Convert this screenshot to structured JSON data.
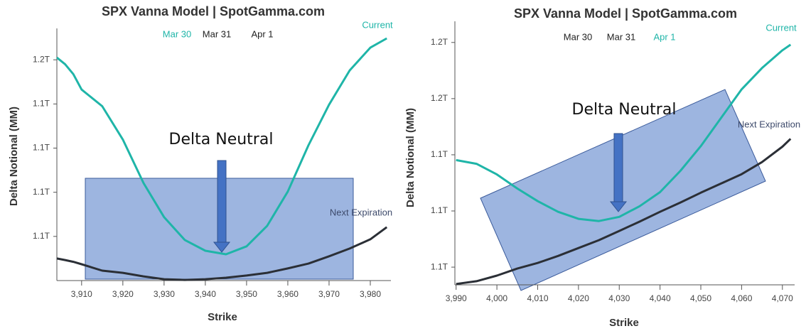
{
  "chart_data": [
    {
      "type": "line",
      "title": "SPX Vanna Model | SpotGamma.com",
      "legend": [
        {
          "label": "Mar 30",
          "color": "#1fb5a8"
        },
        {
          "label": "Mar 31",
          "color": "#222222"
        },
        {
          "label": "Apr 1",
          "color": "#222222"
        }
      ],
      "x_label": "Strike",
      "y_label": "Delta Notional (MM)",
      "annotations": [
        "Delta Neutral"
      ],
      "x": [
        3904,
        3906,
        3908,
        3910,
        3915,
        3920,
        3925,
        3930,
        3935,
        3940,
        3945,
        3950,
        3955,
        3960,
        3965,
        3970,
        3975,
        3980,
        3984
      ],
      "series": [
        {
          "name": "Current",
          "color": "#1fb5a8",
          "values": [
            1.161,
            1.158,
            1.1535,
            1.1465,
            1.139,
            1.1239,
            1.1042,
            1.0887,
            1.0784,
            1.0735,
            1.0719,
            1.0755,
            1.0848,
            1.1003,
            1.1213,
            1.1397,
            1.1552,
            1.1655,
            1.1697
          ]
        },
        {
          "name": "Next Expiration",
          "color": "#2b2f36",
          "values": [
            1.07,
            1.0693,
            1.0685,
            1.0674,
            1.0645,
            1.0635,
            1.0619,
            1.0606,
            1.0603,
            1.0606,
            1.0613,
            1.0623,
            1.0635,
            1.0655,
            1.0677,
            1.071,
            1.0745,
            1.0787,
            1.0842
          ]
        }
      ],
      "xlim": [
        3904,
        3985
      ],
      "xticks": [
        {
          "value": 3910,
          "label": "3,910"
        },
        {
          "value": 3920,
          "label": "3,920"
        },
        {
          "value": 3930,
          "label": "3,930"
        },
        {
          "value": 3940,
          "label": "3,940"
        },
        {
          "value": 3950,
          "label": "3,950"
        },
        {
          "value": 3960,
          "label": "3,960"
        },
        {
          "value": 3970,
          "label": "3,970"
        },
        {
          "value": 3980,
          "label": "3,980"
        }
      ],
      "ylim": [
        1.06,
        1.171
      ],
      "yticks": [
        {
          "value": 1.16,
          "label": "1.2T"
        },
        {
          "value": 1.14,
          "label": "1.1T"
        },
        {
          "value": 1.12,
          "label": "1.1T"
        },
        {
          "value": 1.1,
          "label": "1.1T"
        },
        {
          "value": 1.08,
          "label": "1.1T"
        }
      ],
      "grid": false
    },
    {
      "type": "line",
      "title": "SPX Vanna Model | SpotGamma.com",
      "legend": [
        {
          "label": "Mar 30",
          "color": "#222222"
        },
        {
          "label": "Mar 31",
          "color": "#222222"
        },
        {
          "label": "Apr 1",
          "color": "#1fb5a8"
        }
      ],
      "x_label": "Strike",
      "y_label": "Delta Notional (MM)",
      "annotations": [
        "Delta Neutral"
      ],
      "x": [
        3990,
        3995,
        4000,
        4005,
        4010,
        4015,
        4020,
        4025,
        4030,
        4035,
        4040,
        4045,
        4050,
        4055,
        4060,
        4065,
        4070,
        4072
      ],
      "series": [
        {
          "name": "Current",
          "color": "#1fb5a8",
          "values": [
            1.1381,
            1.1368,
            1.133,
            1.128,
            1.1235,
            1.1197,
            1.1172,
            1.1164,
            1.1179,
            1.1217,
            1.1267,
            1.1343,
            1.1431,
            1.1532,
            1.1633,
            1.1709,
            1.1772,
            1.1792
          ]
        },
        {
          "name": "Next Expiration",
          "color": "#2b2f36",
          "values": [
            1.094,
            1.095,
            1.097,
            1.0995,
            1.1015,
            1.104,
            1.1068,
            1.1096,
            1.1129,
            1.1162,
            1.1197,
            1.123,
            1.1265,
            1.1298,
            1.1331,
            1.1374,
            1.1429,
            1.1457
          ]
        }
      ],
      "xlim": [
        3989.7,
        4073
      ],
      "xticks": [
        {
          "value": 3990,
          "label": "3,990"
        },
        {
          "value": 4000,
          "label": "4,000"
        },
        {
          "value": 4010,
          "label": "4,010"
        },
        {
          "value": 4020,
          "label": "4,020"
        },
        {
          "value": 4030,
          "label": "4,030"
        },
        {
          "value": 4040,
          "label": "4,040"
        },
        {
          "value": 4050,
          "label": "4,050"
        },
        {
          "value": 4060,
          "label": "4,060"
        },
        {
          "value": 4070,
          "label": "4,070"
        }
      ],
      "ylim": [
        1.0937,
        1.185
      ],
      "yticks": [
        {
          "value": 1.18,
          "label": "1.2T"
        },
        {
          "value": 1.16,
          "label": "1.2T"
        },
        {
          "value": 1.14,
          "label": "1.1T"
        },
        {
          "value": 1.12,
          "label": "1.1T"
        },
        {
          "value": 1.1,
          "label": "1.1T"
        }
      ],
      "grid": false
    }
  ]
}
